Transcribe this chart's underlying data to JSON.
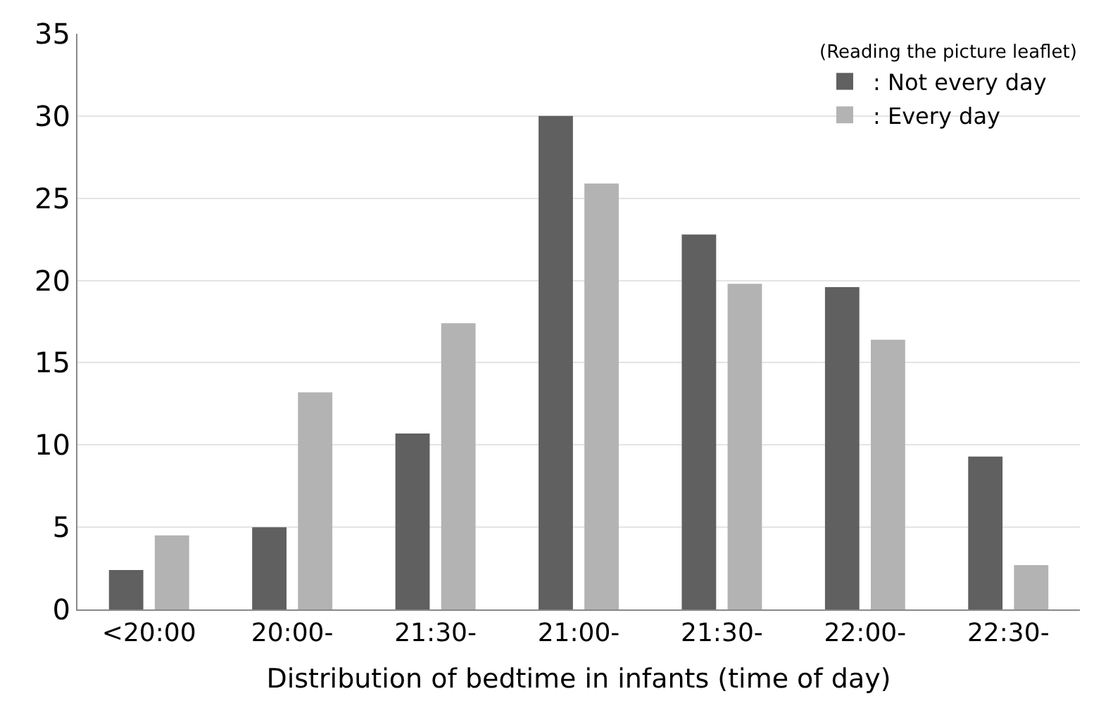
{
  "chart_data": {
    "type": "bar",
    "xlabel": "Distribution of bedtime in infants (time of day)",
    "legend_title": "(Reading the picture leaflet)",
    "categories": [
      "<20:00",
      "20:00-",
      "21:30-",
      "21:00-",
      "21:30-",
      "22:00-",
      "22:30-"
    ],
    "series": [
      {
        "name": ": Not every day",
        "color": "#606060",
        "values": [
          2.4,
          5.0,
          10.7,
          30.0,
          22.8,
          19.6,
          9.3
        ]
      },
      {
        "name": ": Every day",
        "color": "#b3b3b3",
        "values": [
          4.5,
          13.2,
          17.4,
          25.9,
          19.8,
          16.4,
          2.7
        ]
      }
    ],
    "ylim": [
      0,
      35
    ],
    "yticks": [
      0,
      5,
      10,
      15,
      20,
      25,
      30,
      35
    ],
    "grid": "y",
    "legend": "top right"
  }
}
